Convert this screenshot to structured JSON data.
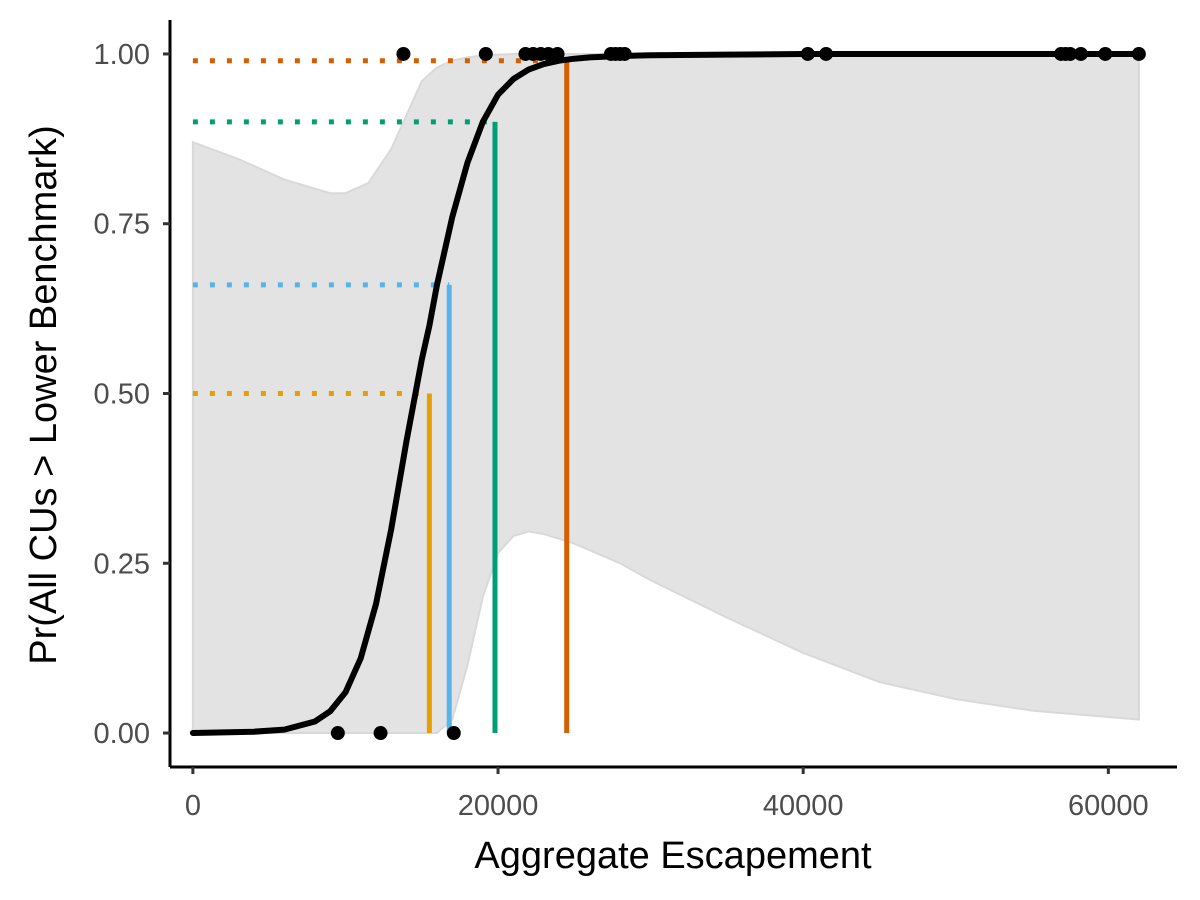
{
  "chart_data": {
    "type": "line",
    "xlabel": "Aggregate Escapement",
    "ylabel": "Pr(All CUs > Lower Benchmark)",
    "xlim": [
      -1500,
      64500
    ],
    "ylim": [
      -0.05,
      1.05
    ],
    "x_ticks": [
      0,
      20000,
      40000,
      60000
    ],
    "x_tick_labels": [
      "0",
      "20000",
      "40000",
      "60000"
    ],
    "y_ticks": [
      0,
      0.25,
      0.5,
      0.75,
      1.0
    ],
    "y_tick_labels": [
      "0.00",
      "0.25",
      "0.50",
      "0.75",
      "1.00"
    ],
    "grid": false,
    "legend": "none",
    "series": [
      {
        "kind": "fitted-curve",
        "color": "#000000",
        "x": [
          0,
          2000,
          4000,
          6000,
          8000,
          9000,
          10000,
          11000,
          12000,
          13000,
          14000,
          15000,
          15500,
          16000,
          17000,
          18000,
          19000,
          20000,
          21000,
          22000,
          23000,
          24000,
          25000,
          26000,
          28000,
          30000,
          35000,
          40000,
          50000,
          62000
        ],
        "y": [
          0.0,
          0.001,
          0.002,
          0.005,
          0.017,
          0.032,
          0.06,
          0.11,
          0.19,
          0.3,
          0.43,
          0.55,
          0.6,
          0.66,
          0.76,
          0.84,
          0.9,
          0.94,
          0.963,
          0.977,
          0.985,
          0.99,
          0.993,
          0.995,
          0.997,
          0.998,
          0.999,
          1.0,
          1.0,
          1.0
        ]
      },
      {
        "kind": "confidence-band",
        "color": "#e3e3e3",
        "x": [
          0,
          3000,
          6000,
          9000,
          10000,
          11500,
          13000,
          14000,
          15000,
          16000,
          17000,
          18000,
          19000,
          20000,
          21000,
          22000,
          23000,
          25000,
          28000,
          30000,
          35000,
          40000,
          45000,
          50000,
          55000,
          62000
        ],
        "lower": [
          0.0,
          0.0,
          0.0,
          0.0,
          0.0,
          0.0,
          0.0,
          0.0,
          0.0,
          0.0,
          0.02,
          0.1,
          0.2,
          0.265,
          0.29,
          0.297,
          0.293,
          0.279,
          0.25,
          0.225,
          0.17,
          0.118,
          0.075,
          0.05,
          0.033,
          0.02
        ],
        "upper": [
          0.87,
          0.845,
          0.815,
          0.795,
          0.795,
          0.81,
          0.86,
          0.91,
          0.96,
          0.98,
          0.99,
          0.995,
          0.998,
          0.999,
          1.0,
          1.0,
          1.0,
          1.0,
          1.0,
          1.0,
          1.0,
          1.0,
          1.0,
          1.0,
          1.0,
          1.0
        ]
      },
      {
        "kind": "observations",
        "color": "#000000",
        "points": [
          [
            9500,
            0
          ],
          [
            12300,
            0
          ],
          [
            17100,
            0
          ],
          [
            13800,
            1
          ],
          [
            19200,
            1
          ],
          [
            21800,
            1
          ],
          [
            22300,
            1
          ],
          [
            22800,
            1
          ],
          [
            23300,
            1
          ],
          [
            23900,
            1
          ],
          [
            27400,
            1
          ],
          [
            27700,
            1
          ],
          [
            28000,
            1
          ],
          [
            28300,
            1
          ],
          [
            40300,
            1
          ],
          [
            41500,
            1
          ],
          [
            56900,
            1
          ],
          [
            57200,
            1
          ],
          [
            57500,
            1
          ],
          [
            58200,
            1
          ],
          [
            59800,
            1
          ],
          [
            62000,
            1
          ]
        ]
      }
    ],
    "reference_lines": [
      {
        "color": "#E69F00",
        "probability": 0.5,
        "escapement": 15500
      },
      {
        "color": "#56B4E9",
        "probability": 0.66,
        "escapement": 16800
      },
      {
        "color": "#009E73",
        "probability": 0.9,
        "escapement": 19800
      },
      {
        "color": "#D55E00",
        "probability": 0.99,
        "escapement": 24500
      }
    ]
  }
}
